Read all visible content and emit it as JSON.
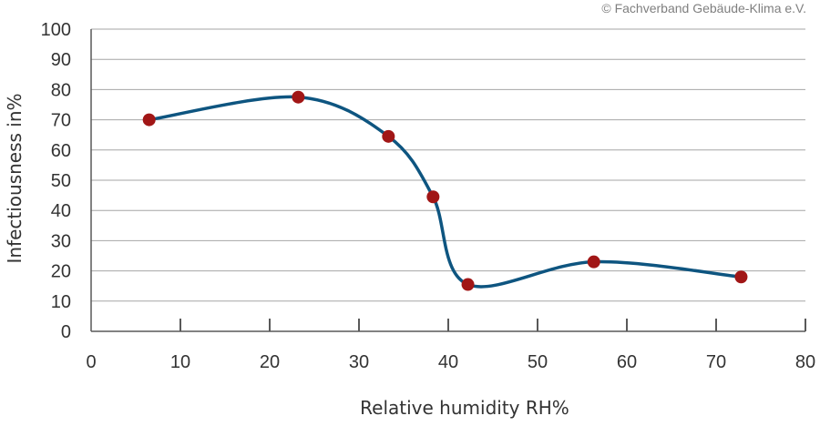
{
  "copyright": "© Fachverband Gebäude-Klima e.V.",
  "chart_data": {
    "type": "line",
    "xlabel": "Relative humidity RH%",
    "ylabel": "Infectiousness in%",
    "xlim": [
      0,
      80
    ],
    "ylim": [
      0,
      100
    ],
    "x_ticks": [
      0,
      10,
      20,
      30,
      40,
      50,
      60,
      70,
      80
    ],
    "y_ticks": [
      0,
      10,
      20,
      30,
      40,
      50,
      60,
      70,
      80,
      90,
      100
    ],
    "grid": "horizontal",
    "series": [
      {
        "x": [
          6.5,
          23.2,
          33.3,
          38.3,
          42.2,
          56.3,
          72.8
        ],
        "y": [
          70,
          77.5,
          64.5,
          44.5,
          15.5,
          23,
          18
        ]
      }
    ],
    "colors": {
      "line": "#0e5580",
      "marker": "#a11616",
      "grid": "#a6a6a6",
      "axis": "#595959",
      "text": "#333333"
    }
  }
}
